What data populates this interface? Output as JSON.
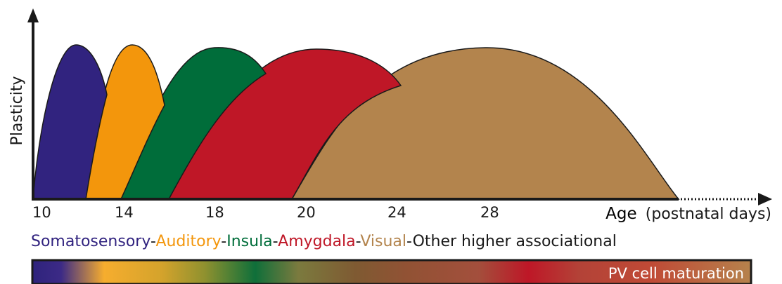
{
  "y_axis_label": "Plasticity",
  "x_axis": {
    "label_main": "Age",
    "label_sub": "(postnatal days)",
    "ticks": [
      "10",
      "14",
      "18",
      "20",
      "24",
      "28"
    ]
  },
  "regions": [
    {
      "name": "Somatosensory",
      "color": "#31237f"
    },
    {
      "name": "Auditory",
      "color": "#f3960c"
    },
    {
      "name": "Insula",
      "color": "#006d3a"
    },
    {
      "name": "Amygdala",
      "color": "#bf1727"
    },
    {
      "name": "Visual",
      "color": "#b3844d"
    },
    {
      "name": "Other higher associational",
      "color": "#1a1a1a"
    }
  ],
  "separator": "-",
  "gradient_bar": {
    "label": "PV cell maturation"
  }
}
